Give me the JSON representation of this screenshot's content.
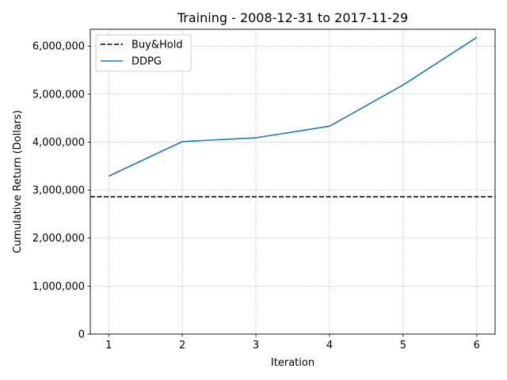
{
  "chart_data": {
    "type": "line",
    "title": "Training - 2008-12-31 to 2017-11-29",
    "xlabel": "Iteration",
    "ylabel": "Cumulative Return (Dollars)",
    "x": [
      1,
      2,
      3,
      4,
      5,
      6
    ],
    "xlim": [
      0.75,
      6.25
    ],
    "ylim": [
      0,
      6350000
    ],
    "xticks": [
      1,
      2,
      3,
      4,
      5,
      6
    ],
    "yticks": [
      0,
      1000000,
      2000000,
      3000000,
      4000000,
      5000000,
      6000000
    ],
    "ytick_labels": [
      "0",
      "1,000,000",
      "2,000,000",
      "3,000,000",
      "4,000,000",
      "5,000,000",
      "6,000,000"
    ],
    "grid": true,
    "legend_position": "top-left",
    "series": [
      {
        "name": "Buy&Hold",
        "style": "dashed",
        "color": "#000000",
        "values": [
          2860000,
          2860000,
          2860000,
          2860000,
          2860000,
          2860000
        ]
      },
      {
        "name": "DDPG",
        "style": "solid",
        "color": "#1f77b4",
        "values": [
          3290000,
          4010000,
          4090000,
          4330000,
          5190000,
          6180000
        ]
      }
    ]
  }
}
